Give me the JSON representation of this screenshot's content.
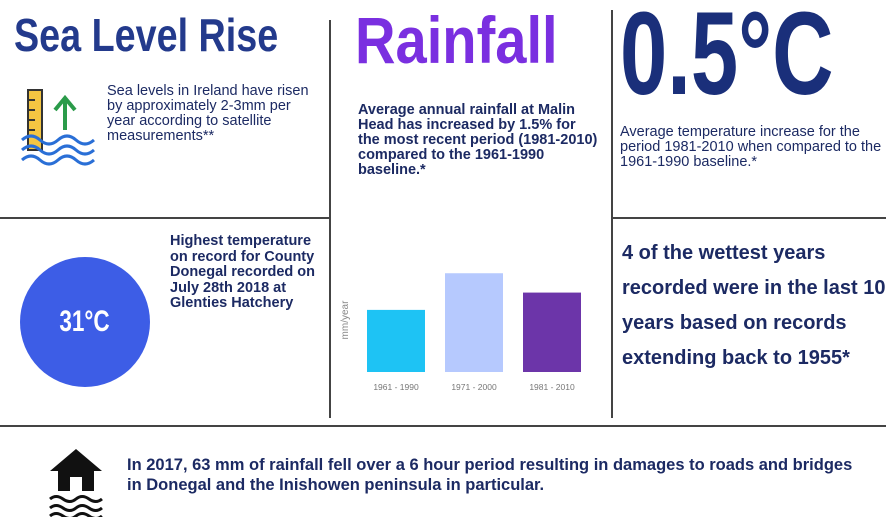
{
  "sea_level": {
    "title": "Sea Level Rise",
    "text": "Sea levels in Ireland have risen by approximately 2-3mm per year according to satellite measurements**"
  },
  "rainfall": {
    "title": "Rainfall",
    "text": "Average annual rainfall at Malin Head has increased by 1.5% for the most recent period (1981-2010) compared to the 1961-1990 baseline.*"
  },
  "temperature": {
    "title": "0.5°C",
    "text": "Average temperature increase for the period 1981-2010 when compared to the 1961-1990 baseline.*"
  },
  "record": {
    "badge": "31°C",
    "text": "Highest temperature on record for County Donegal recorded on July 28th 2018 at Glenties Hatchery"
  },
  "chart_data": {
    "type": "bar",
    "y_label": "mm/year",
    "categories": [
      "1961 - 1990",
      "1971 - 2000",
      "1981 - 2010"
    ],
    "values": [
      61,
      97,
      78
    ],
    "colors": [
      "#1ec3f4",
      "#b6c9fe",
      "#6c35a9"
    ],
    "ylim": [
      0,
      110
    ]
  },
  "wettest": {
    "text": "4 of the wettest years recorded were in the last 10 years based on records extending back to 1955*"
  },
  "flood": {
    "text": "In 2017, 63 mm of rainfall fell over a 6 hour period resulting in damages to roads and bridges in Donegal and the Inishowen peninsula in particular."
  }
}
